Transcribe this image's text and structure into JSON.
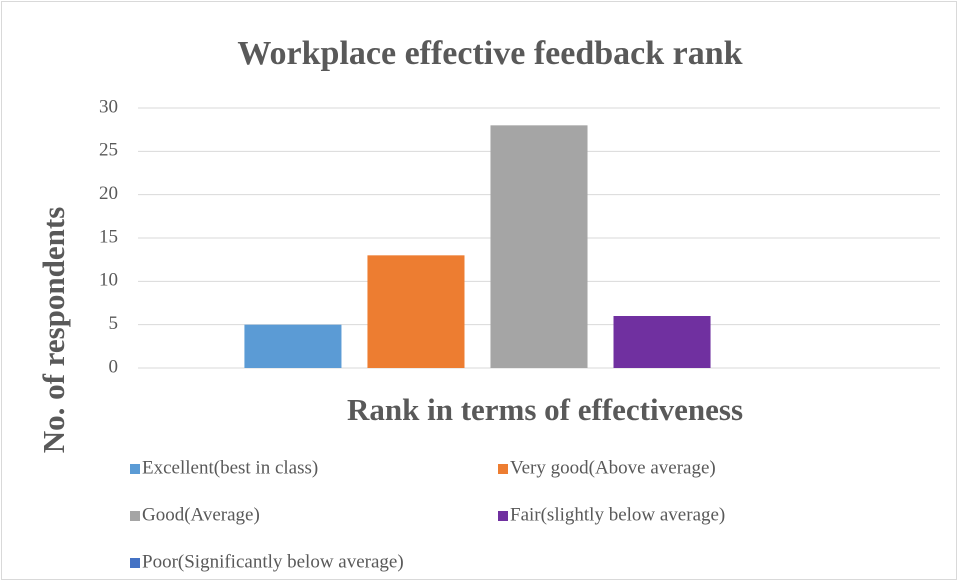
{
  "chart_data": {
    "type": "bar",
    "title": "Workplace effective feedback rank",
    "x_label": "Rank in terms of effectiveness",
    "y_label": "No.  of respondents",
    "categories": [
      null
    ],
    "series": [
      {
        "name": "Excellent(best in class)",
        "color": "#5b9bd5",
        "values": [
          5
        ]
      },
      {
        "name": "Very good(Above average)",
        "color": "#ed7d31",
        "values": [
          13
        ]
      },
      {
        "name": "Good(Average)",
        "color": "#a5a5a5",
        "values": [
          28
        ]
      },
      {
        "name": "Fair(slightly below average)",
        "color": "#7030a0",
        "values": [
          6
        ]
      },
      {
        "name": "Poor(Significantly below average)",
        "color": "#4472c4",
        "values": [
          0
        ]
      }
    ],
    "ylim": [
      0,
      30
    ],
    "yticks": [
      0,
      5,
      10,
      15,
      20,
      25,
      30
    ],
    "grid": true,
    "legend": "bottom"
  }
}
